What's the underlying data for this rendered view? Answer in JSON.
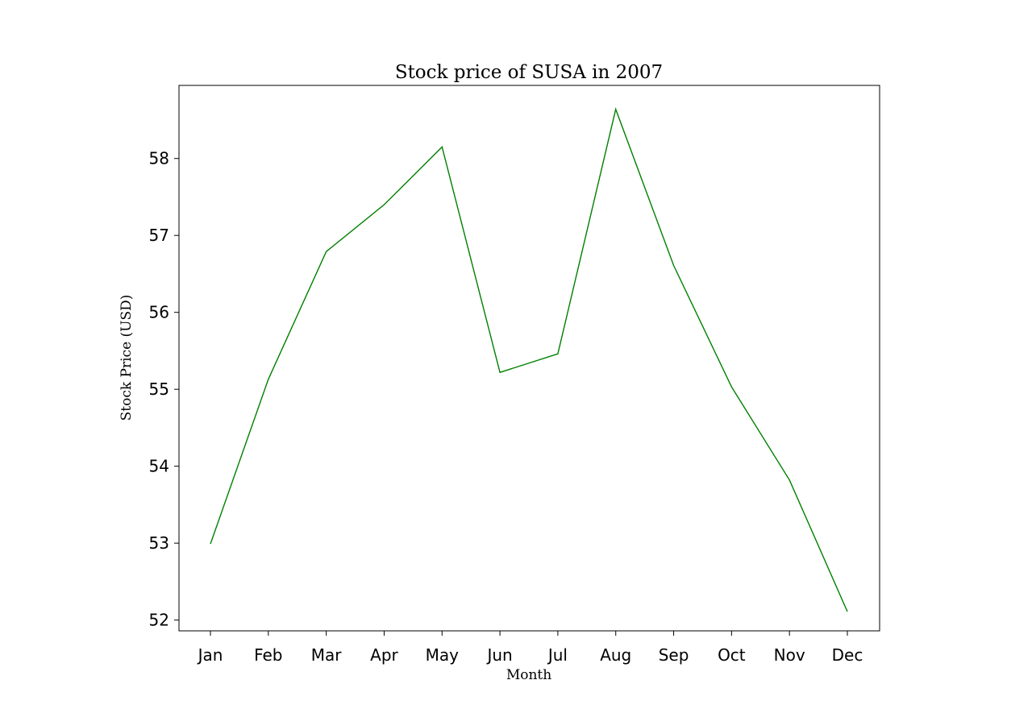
{
  "chart_data": {
    "type": "line",
    "title": "Stock price of SUSA in 2007",
    "xlabel": "Month",
    "ylabel": "Stock Price (USD)",
    "categories": [
      "Jan",
      "Feb",
      "Mar",
      "Apr",
      "May",
      "Jun",
      "Jul",
      "Aug",
      "Sep",
      "Oct",
      "Nov",
      "Dec"
    ],
    "series": [
      {
        "values": [
          52.99,
          55.13,
          56.79,
          57.4,
          58.15,
          55.22,
          55.46,
          58.64,
          56.61,
          55.03,
          53.82,
          52.11
        ],
        "color": "#008000"
      }
    ],
    "yticks": [
      52,
      53,
      54,
      55,
      56,
      57,
      58
    ],
    "ylim": [
      51.86,
      58.95
    ],
    "grid": false,
    "legend": "none"
  }
}
